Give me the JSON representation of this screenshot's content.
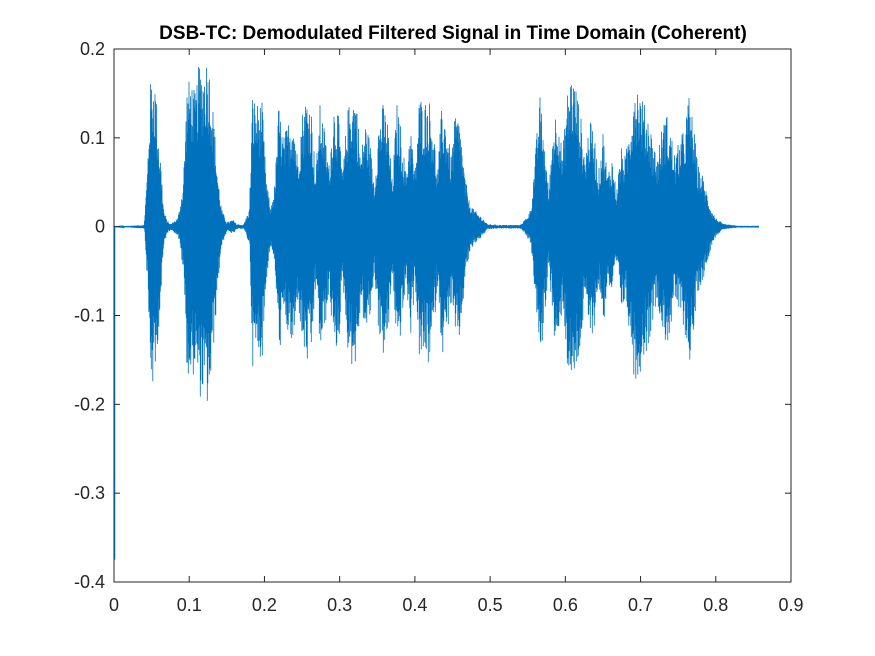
{
  "chart_data": {
    "type": "line",
    "title": "DSB-TC: Demodulated Filtered Signal in Time Domain (Coherent)",
    "xlabel": "",
    "ylabel": "",
    "xlim": [
      0,
      0.9
    ],
    "ylim": [
      -0.4,
      0.2
    ],
    "x_ticks": [
      0,
      0.1,
      0.2,
      0.3,
      0.4,
      0.5,
      0.6,
      0.7,
      0.8,
      0.9
    ],
    "x_tick_labels": [
      "0",
      "0.1",
      "0.2",
      "0.3",
      "0.4",
      "0.5",
      "0.6",
      "0.7",
      "0.8",
      "0.9"
    ],
    "y_ticks": [
      -0.4,
      -0.3,
      -0.2,
      -0.1,
      0,
      0.1,
      0.2
    ],
    "y_tick_labels": [
      "-0.4",
      "-0.3",
      "-0.2",
      "-0.1",
      "0",
      "0.1",
      "0.2"
    ],
    "grid": false,
    "box": true,
    "series_color": "#0072BD",
    "axis_color": "#262626",
    "signal_end_x": 0.857,
    "initial_transient": {
      "x": 0.001,
      "y_min": -0.375
    },
    "envelope": [
      [
        0.0,
        0.0
      ],
      [
        0.04,
        0.002
      ],
      [
        0.044,
        0.06
      ],
      [
        0.048,
        0.16
      ],
      [
        0.051,
        0.175
      ],
      [
        0.055,
        0.165
      ],
      [
        0.058,
        0.12
      ],
      [
        0.062,
        0.08
      ],
      [
        0.066,
        0.02
      ],
      [
        0.07,
        0.008
      ],
      [
        0.075,
        0.003
      ],
      [
        0.085,
        0.01
      ],
      [
        0.092,
        0.05
      ],
      [
        0.097,
        0.16
      ],
      [
        0.102,
        0.17
      ],
      [
        0.108,
        0.15
      ],
      [
        0.113,
        0.185
      ],
      [
        0.118,
        0.18
      ],
      [
        0.124,
        0.195
      ],
      [
        0.128,
        0.175
      ],
      [
        0.133,
        0.12
      ],
      [
        0.138,
        0.06
      ],
      [
        0.143,
        0.02
      ],
      [
        0.15,
        0.005
      ],
      [
        0.158,
        0.008
      ],
      [
        0.163,
        0.003
      ],
      [
        0.172,
        0.002
      ],
      [
        0.18,
        0.02
      ],
      [
        0.184,
        0.15
      ],
      [
        0.19,
        0.14
      ],
      [
        0.197,
        0.14
      ],
      [
        0.202,
        0.06
      ],
      [
        0.208,
        0.02
      ],
      [
        0.214,
        0.05
      ],
      [
        0.219,
        0.14
      ],
      [
        0.225,
        0.1
      ],
      [
        0.232,
        0.12
      ],
      [
        0.238,
        0.135
      ],
      [
        0.244,
        0.08
      ],
      [
        0.25,
        0.13
      ],
      [
        0.256,
        0.15
      ],
      [
        0.262,
        0.14
      ],
      [
        0.268,
        0.06
      ],
      [
        0.274,
        0.14
      ],
      [
        0.28,
        0.11
      ],
      [
        0.286,
        0.07
      ],
      [
        0.292,
        0.14
      ],
      [
        0.298,
        0.13
      ],
      [
        0.304,
        0.06
      ],
      [
        0.31,
        0.13
      ],
      [
        0.316,
        0.15
      ],
      [
        0.322,
        0.15
      ],
      [
        0.328,
        0.08
      ],
      [
        0.334,
        0.12
      ],
      [
        0.34,
        0.1
      ],
      [
        0.346,
        0.05
      ],
      [
        0.352,
        0.12
      ],
      [
        0.358,
        0.14
      ],
      [
        0.364,
        0.12
      ],
      [
        0.37,
        0.05
      ],
      [
        0.376,
        0.14
      ],
      [
        0.382,
        0.11
      ],
      [
        0.388,
        0.06
      ],
      [
        0.394,
        0.12
      ],
      [
        0.4,
        0.06
      ],
      [
        0.406,
        0.15
      ],
      [
        0.412,
        0.14
      ],
      [
        0.418,
        0.15
      ],
      [
        0.424,
        0.12
      ],
      [
        0.43,
        0.06
      ],
      [
        0.436,
        0.14
      ],
      [
        0.442,
        0.12
      ],
      [
        0.448,
        0.08
      ],
      [
        0.454,
        0.13
      ],
      [
        0.46,
        0.12
      ],
      [
        0.466,
        0.06
      ],
      [
        0.472,
        0.03
      ],
      [
        0.478,
        0.02
      ],
      [
        0.484,
        0.015
      ],
      [
        0.49,
        0.01
      ],
      [
        0.496,
        0.003
      ],
      [
        0.51,
        0.002
      ],
      [
        0.54,
        0.002
      ],
      [
        0.548,
        0.01
      ],
      [
        0.554,
        0.02
      ],
      [
        0.56,
        0.08
      ],
      [
        0.566,
        0.15
      ],
      [
        0.572,
        0.1
      ],
      [
        0.578,
        0.04
      ],
      [
        0.584,
        0.12
      ],
      [
        0.59,
        0.14
      ],
      [
        0.596,
        0.08
      ],
      [
        0.602,
        0.15
      ],
      [
        0.608,
        0.175
      ],
      [
        0.614,
        0.16
      ],
      [
        0.62,
        0.13
      ],
      [
        0.626,
        0.08
      ],
      [
        0.632,
        0.12
      ],
      [
        0.638,
        0.11
      ],
      [
        0.644,
        0.06
      ],
      [
        0.65,
        0.11
      ],
      [
        0.656,
        0.06
      ],
      [
        0.662,
        0.08
      ],
      [
        0.668,
        0.04
      ],
      [
        0.674,
        0.09
      ],
      [
        0.68,
        0.08
      ],
      [
        0.686,
        0.12
      ],
      [
        0.692,
        0.17
      ],
      [
        0.698,
        0.16
      ],
      [
        0.704,
        0.14
      ],
      [
        0.71,
        0.13
      ],
      [
        0.716,
        0.1
      ],
      [
        0.722,
        0.08
      ],
      [
        0.728,
        0.11
      ],
      [
        0.734,
        0.13
      ],
      [
        0.74,
        0.11
      ],
      [
        0.746,
        0.08
      ],
      [
        0.752,
        0.1
      ],
      [
        0.758,
        0.11
      ],
      [
        0.764,
        0.15
      ],
      [
        0.77,
        0.12
      ],
      [
        0.776,
        0.07
      ],
      [
        0.782,
        0.06
      ],
      [
        0.788,
        0.04
      ],
      [
        0.794,
        0.02
      ],
      [
        0.8,
        0.01
      ],
      [
        0.81,
        0.003
      ],
      [
        0.83,
        0.001
      ],
      [
        0.857,
        0.001
      ]
    ]
  }
}
